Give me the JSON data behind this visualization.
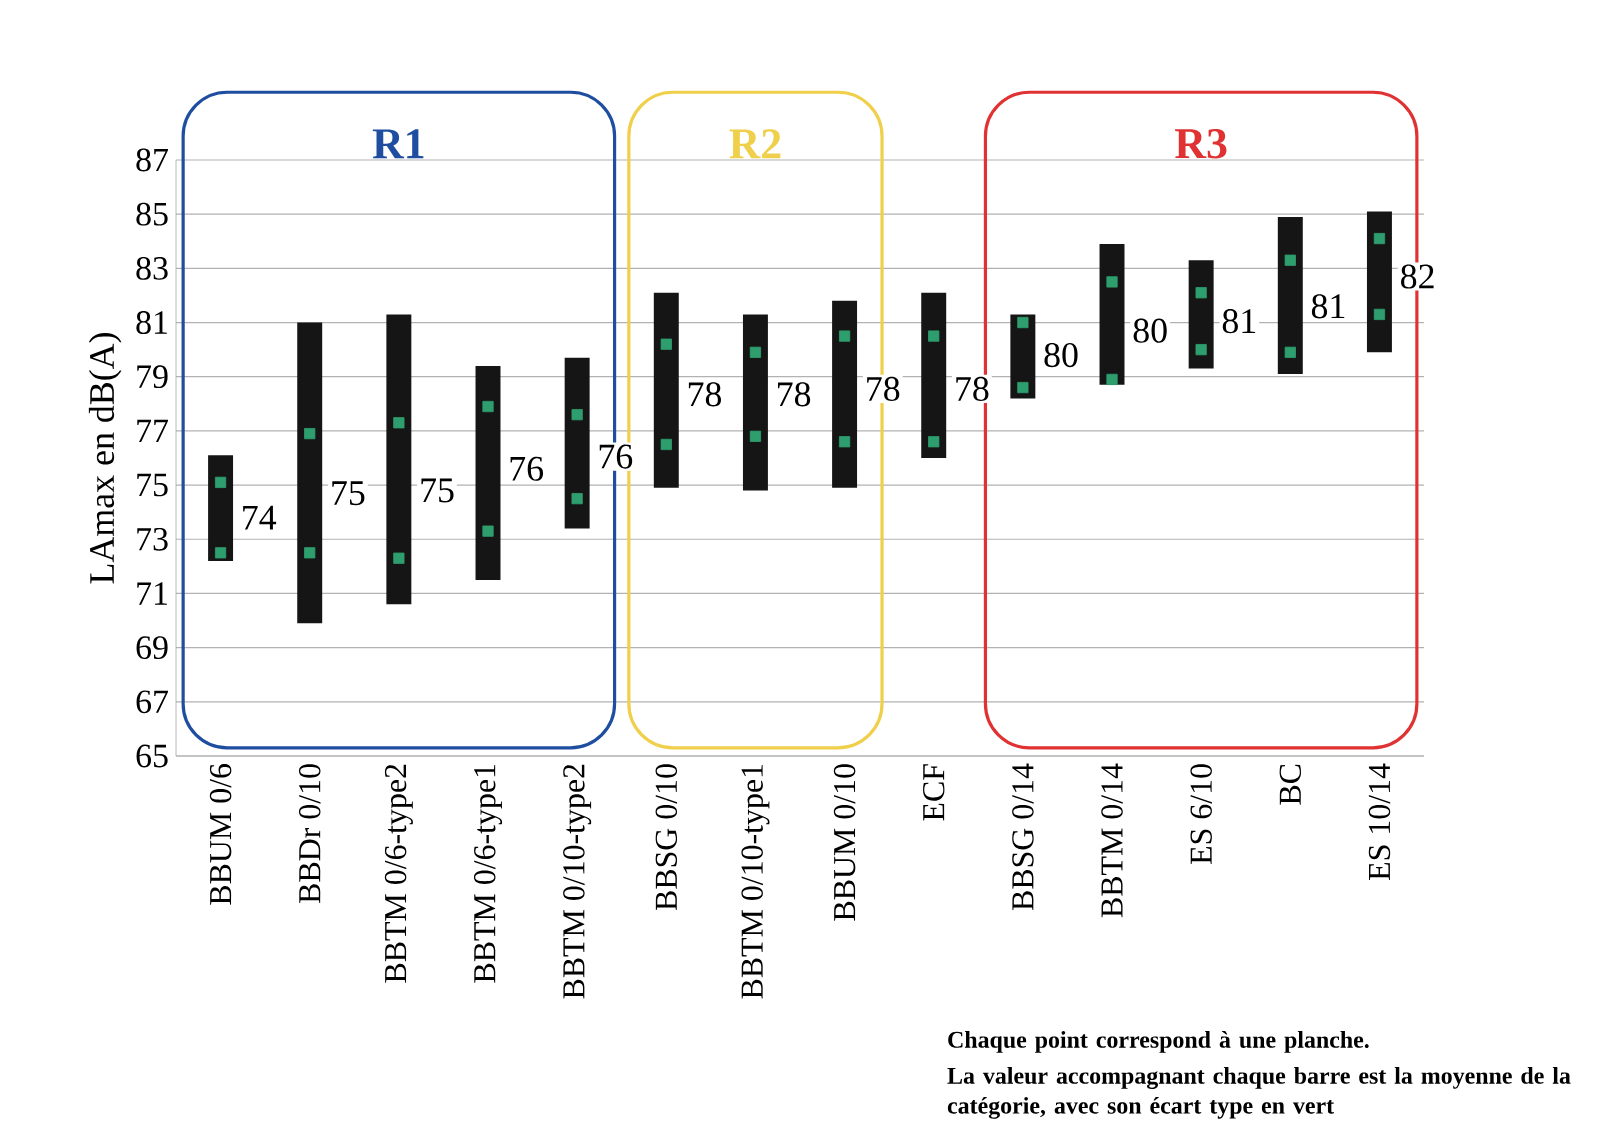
{
  "chart_data": {
    "type": "bar",
    "ylabel": "LAmax en dB(A)",
    "categories": [
      "BBUM 0/6",
      "BBDr 0/10",
      "BBTM 0/6-type2",
      "BBTM 0/6-type1",
      "BBTM 0/10-type2",
      "BBSG 0/10",
      "BBTM 0/10-type1",
      "BBUM 0/10",
      "ECF",
      "BBSG 0/14",
      "BBTM 0/14",
      "ES 6/10",
      "BC",
      "ES 10/14"
    ],
    "ylim": [
      65,
      87
    ],
    "yticks": [
      65,
      67,
      69,
      71,
      73,
      75,
      77,
      79,
      81,
      83,
      85,
      87
    ],
    "grid": "y",
    "series": [
      {
        "color": "#151515",
        "base": [
          72.2,
          69.9,
          70.6,
          71.5,
          73.4,
          74.9,
          74.8,
          74.9,
          76.0,
          78.2,
          78.7,
          79.3,
          79.1,
          79.9
        ],
        "values": [
          3.9,
          11.1,
          10.7,
          7.9,
          6.3,
          7.2,
          6.5,
          6.9,
          6.1,
          3.1,
          5.2,
          4.0,
          5.8,
          5.2
        ]
      },
      {
        "type": "scatter",
        "color": "#2e9e6e",
        "marker": "square",
        "values": [
          72.5,
          72.5,
          72.3,
          73.3,
          74.5,
          76.5,
          76.8,
          76.6,
          76.6,
          78.6,
          78.9,
          80.0,
          79.9,
          81.3
        ]
      },
      {
        "type": "scatter",
        "color": "#2e9e6e",
        "marker": "square",
        "values": [
          75.1,
          76.9,
          77.3,
          77.9,
          77.6,
          80.2,
          79.9,
          80.5,
          80.5,
          81.0,
          82.5,
          82.1,
          83.3,
          84.1
        ]
      }
    ],
    "annotations": [
      "74",
      "75",
      "75",
      "76",
      "76",
      "78",
      "78",
      "78",
      "78",
      "80",
      "80",
      "81",
      "81",
      "82",
      "R1",
      "R2",
      "R3",
      "Chaque point correspond à une planche.",
      "La valeur accompagnant chaque barre est la moyenne de la catégorie, avec son écart type en vert"
    ]
  }
}
